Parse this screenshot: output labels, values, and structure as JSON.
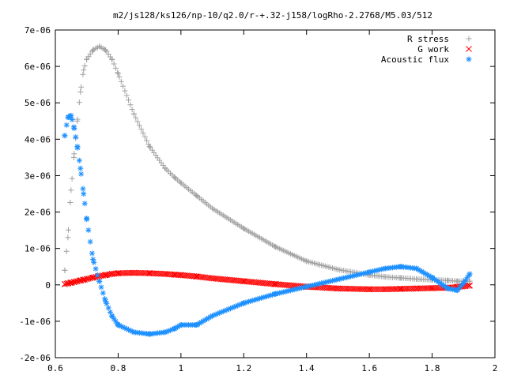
{
  "chart_data": {
    "type": "scatter",
    "title": "m2/js128/ks126/np-10/q2.0/r-+.32-j158/logRho-2.2768/M5.03/512",
    "xlabel": "",
    "ylabel": "",
    "xlim": [
      0.6,
      2.0
    ],
    "ylim": [
      -2e-06,
      7e-06
    ],
    "x_ticks": [
      0.6,
      0.8,
      1.0,
      1.2,
      1.4,
      1.6,
      1.8,
      2.0
    ],
    "x_tick_labels": [
      "0.6",
      "0.8",
      "1",
      "1.2",
      "1.4",
      "1.6",
      "1.8",
      "2"
    ],
    "y_ticks": [
      -2e-06,
      -1e-06,
      0,
      1e-06,
      2e-06,
      3e-06,
      4e-06,
      5e-06,
      6e-06,
      7e-06
    ],
    "y_tick_labels": [
      "-2e-06",
      "-1e-06",
      "0",
      "1e-06",
      "2e-06",
      "3e-06",
      "4e-06",
      "5e-06",
      "6e-06",
      "7e-06"
    ],
    "grid": false,
    "legend_position": "top-right",
    "x": [
      0.63,
      0.64,
      0.65,
      0.66,
      0.67,
      0.68,
      0.69,
      0.7,
      0.72,
      0.74,
      0.76,
      0.78,
      0.8,
      0.85,
      0.9,
      0.95,
      0.98,
      1.0,
      1.05,
      1.1,
      1.2,
      1.3,
      1.4,
      1.5,
      1.6,
      1.65,
      1.7,
      1.75,
      1.8,
      1.85,
      1.88,
      1.9,
      1.92
    ],
    "series": [
      {
        "name": "R stress",
        "marker": "plus",
        "color": "#a0a0a0",
        "values": [
          4e-07,
          1.3e-06,
          2.6e-06,
          3.6e-06,
          4.5e-06,
          5.3e-06,
          5.9e-06,
          6.2e-06,
          6.45e-06,
          6.55e-06,
          6.45e-06,
          6.2e-06,
          5.8e-06,
          4.7e-06,
          3.8e-06,
          3.2e-06,
          2.95e-06,
          2.8e-06,
          2.45e-06,
          2.1e-06,
          1.55e-06,
          1.05e-06,
          6.5e-07,
          4.2e-07,
          2.7e-07,
          2.2e-07,
          1.9e-07,
          1.6e-07,
          1.4e-07,
          1.2e-07,
          1e-07,
          1e-07,
          1e-07
        ]
      },
      {
        "name": "G work",
        "marker": "cross",
        "color": "#ff0000",
        "values": [
          2e-08,
          4e-08,
          6e-08,
          8e-08,
          1e-07,
          1.2e-07,
          1.4e-07,
          1.6e-07,
          2e-07,
          2.4e-07,
          2.7e-07,
          3e-07,
          3.2e-07,
          3.3e-07,
          3.2e-07,
          3e-07,
          2.8e-07,
          2.7e-07,
          2.3e-07,
          1.8e-07,
          1e-07,
          2e-08,
          -5e-08,
          -1e-07,
          -1.2e-07,
          -1.2e-07,
          -1.1e-07,
          -1e-07,
          -9e-08,
          -8e-08,
          -6e-08,
          -4e-08,
          -2e-08
        ]
      },
      {
        "name": "Acoustic flux",
        "marker": "star",
        "color": "#1e90ff",
        "values": [
          4.1e-06,
          4.6e-06,
          4.65e-06,
          4.3e-06,
          3.8e-06,
          3.2e-06,
          2.5e-06,
          1.8e-06,
          7e-07,
          1e-07,
          -4.5e-07,
          -8.5e-07,
          -1.1e-06,
          -1.3e-06,
          -1.35e-06,
          -1.3e-06,
          -1.2e-06,
          -1.1e-06,
          -1.1e-06,
          -8.5e-07,
          -5e-07,
          -2.5e-07,
          -5e-08,
          1.5e-07,
          3.5e-07,
          4.5e-07,
          5e-07,
          4.5e-07,
          2e-07,
          -1e-07,
          -1.5e-07,
          5e-08,
          3e-07
        ]
      }
    ]
  }
}
